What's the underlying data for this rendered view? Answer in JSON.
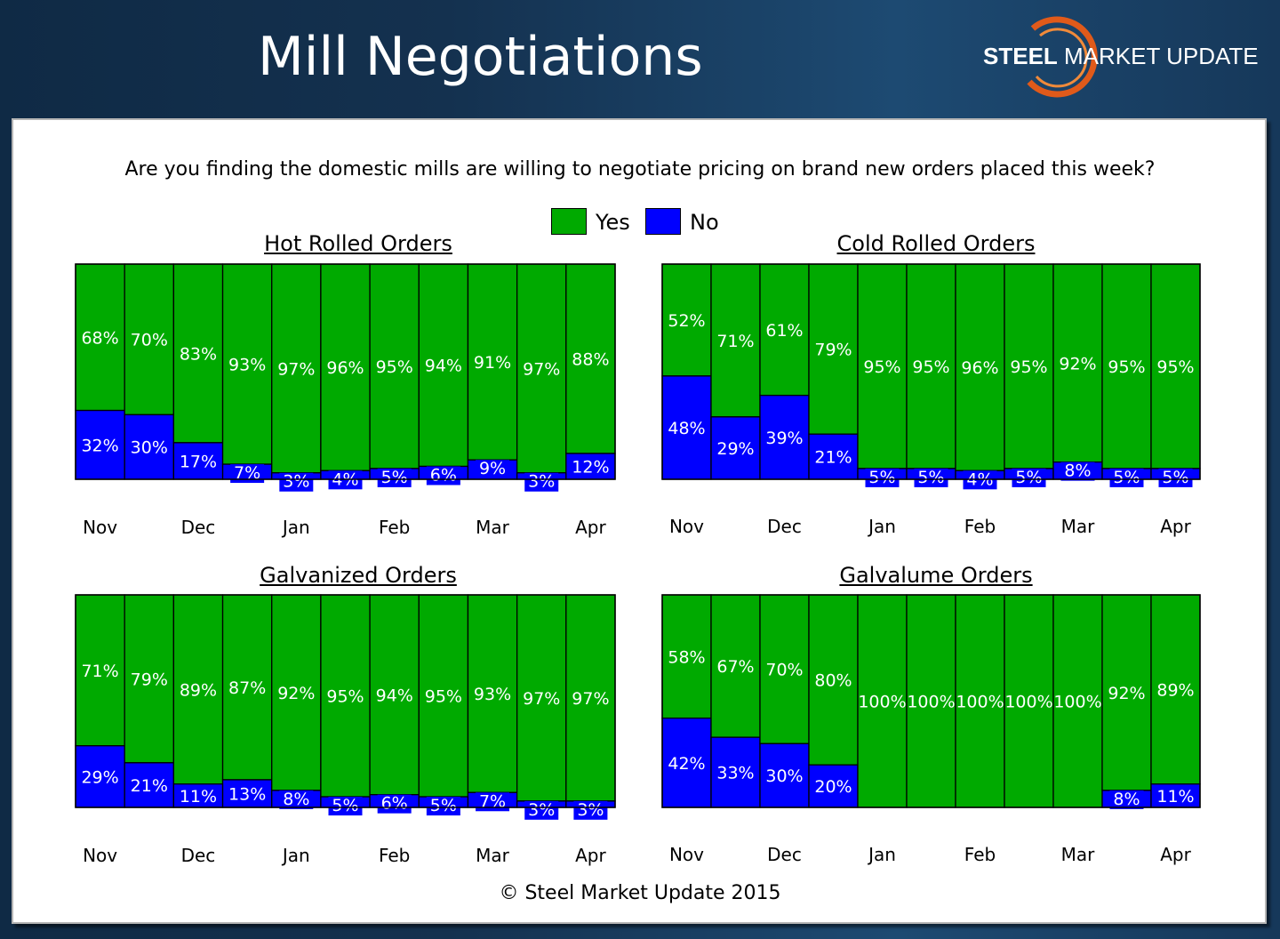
{
  "header": {
    "title": "Mill Negotiations",
    "logo_bold": "STEEL",
    "logo_rest": " MARKET UPDATE"
  },
  "question": "Are you finding the domestic mills are willing to negotiate pricing on brand new orders placed this week?",
  "legend": [
    {
      "label": "Yes",
      "color": "#00aa00"
    },
    {
      "label": "No",
      "color": "#0000ff"
    }
  ],
  "copyright": "© Steel Market Update 2015",
  "colors": {
    "yes": "#00aa00",
    "no": "#0000ff",
    "border": "#000000"
  },
  "chart_data": [
    {
      "type": "bar",
      "stacked": true,
      "title": "Hot Rolled Orders",
      "xticks": [
        "Nov",
        "Dec",
        "Jan",
        "Feb",
        "Mar",
        "Apr"
      ],
      "series": [
        {
          "name": "No",
          "values": [
            32,
            30,
            17,
            7,
            3,
            4,
            5,
            6,
            9,
            3,
            12
          ]
        },
        {
          "name": "Yes",
          "values": [
            68,
            70,
            83,
            93,
            97,
            96,
            95,
            94,
            91,
            97,
            88
          ]
        }
      ],
      "ylim": [
        0,
        100
      ]
    },
    {
      "type": "bar",
      "stacked": true,
      "title": "Cold Rolled Orders",
      "xticks": [
        "Nov",
        "Dec",
        "Jan",
        "Feb",
        "Mar",
        "Apr"
      ],
      "series": [
        {
          "name": "No",
          "values": [
            48,
            29,
            39,
            21,
            5,
            5,
            4,
            5,
            8,
            5,
            5
          ]
        },
        {
          "name": "Yes",
          "values": [
            52,
            71,
            61,
            79,
            95,
            95,
            96,
            95,
            92,
            95,
            95
          ]
        }
      ],
      "ylim": [
        0,
        100
      ]
    },
    {
      "type": "bar",
      "stacked": true,
      "title": "Galvanized Orders",
      "xticks": [
        "Nov",
        "Dec",
        "Jan",
        "Feb",
        "Mar",
        "Apr"
      ],
      "series": [
        {
          "name": "No",
          "values": [
            29,
            21,
            11,
            13,
            8,
            5,
            6,
            5,
            7,
            3,
            3
          ]
        },
        {
          "name": "Yes",
          "values": [
            71,
            79,
            89,
            87,
            92,
            95,
            94,
            95,
            93,
            97,
            97
          ]
        }
      ],
      "ylim": [
        0,
        100
      ]
    },
    {
      "type": "bar",
      "stacked": true,
      "title": "Galvalume Orders",
      "xticks": [
        "Nov",
        "Dec",
        "Jan",
        "Feb",
        "Mar",
        "Apr"
      ],
      "series": [
        {
          "name": "No",
          "values": [
            42,
            33,
            30,
            20,
            0,
            0,
            0,
            0,
            0,
            8,
            11
          ]
        },
        {
          "name": "Yes",
          "values": [
            58,
            67,
            70,
            80,
            100,
            100,
            100,
            100,
            100,
            92,
            89
          ]
        }
      ],
      "ylim": [
        0,
        100
      ]
    }
  ]
}
